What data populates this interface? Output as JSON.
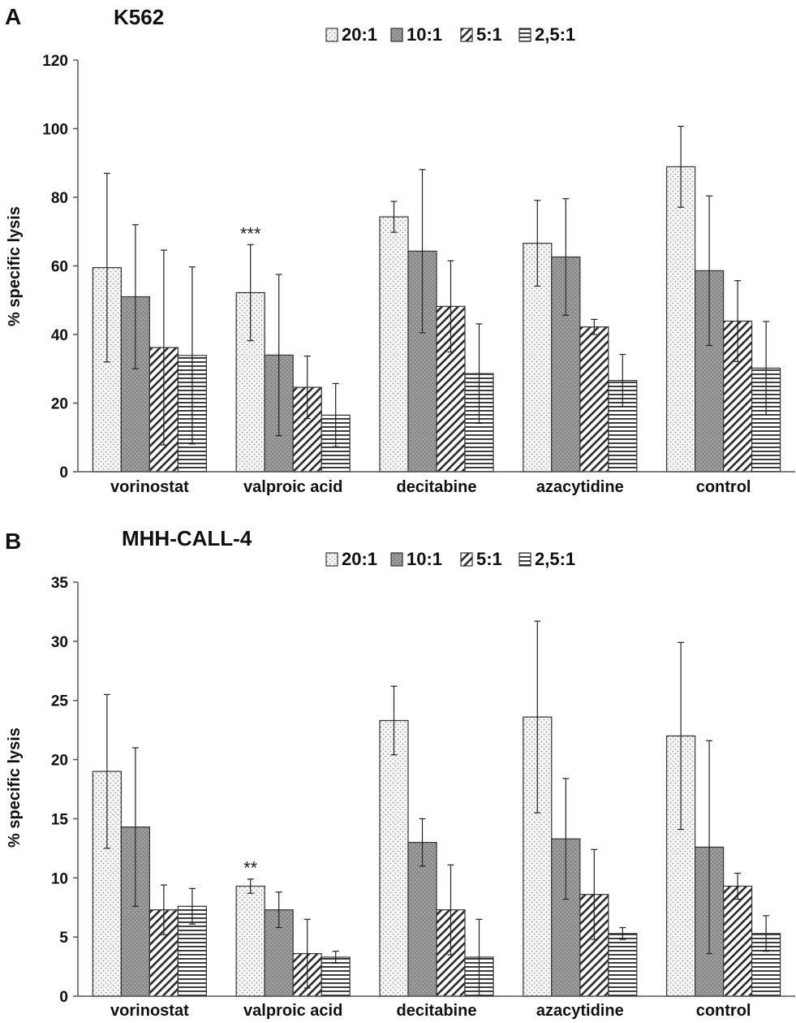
{
  "chart_data": [
    {
      "type": "bar",
      "panel": "A",
      "title": "K562",
      "xlabel": "",
      "ylabel": "% specific lysis",
      "ylim": [
        0,
        120
      ],
      "yticks": [
        0,
        20,
        40,
        60,
        80,
        100,
        120
      ],
      "grid": false,
      "legend_position": "top",
      "categories": [
        "vorinostat",
        "valproic acid",
        "decitabine",
        "azacytidine",
        "control"
      ],
      "series": [
        {
          "name": "20:1",
          "pattern": "dots",
          "values": [
            59.5,
            52.2,
            74.3,
            66.6,
            88.9
          ],
          "errors": [
            27.5,
            14.0,
            4.5,
            12.5,
            11.8
          ]
        },
        {
          "name": "10:1",
          "pattern": "gray-dots",
          "values": [
            51.0,
            34.0,
            64.3,
            62.6,
            58.6
          ],
          "errors": [
            21.0,
            23.5,
            23.8,
            17.0,
            21.8
          ]
        },
        {
          "name": "5:1",
          "pattern": "diagonal",
          "values": [
            36.2,
            24.6,
            48.2,
            42.2,
            43.9
          ],
          "errors": [
            28.4,
            9.1,
            13.3,
            2.2,
            11.8
          ]
        },
        {
          "name": "2,5:1",
          "pattern": "horizontal",
          "values": [
            33.9,
            16.5,
            28.6,
            26.6,
            30.2
          ],
          "errors": [
            25.8,
            9.2,
            14.5,
            7.6,
            13.6
          ]
        }
      ],
      "annotations": [
        {
          "text": "***",
          "category": "valproic acid",
          "series": "20:1"
        }
      ]
    },
    {
      "type": "bar",
      "panel": "B",
      "title": "MHH-CALL-4",
      "xlabel": "",
      "ylabel": "% specific lysis",
      "ylim": [
        0,
        35
      ],
      "yticks": [
        0,
        5,
        10,
        15,
        20,
        25,
        30,
        35
      ],
      "grid": false,
      "legend_position": "top",
      "categories": [
        "vorinostat",
        "valproic acid",
        "decitabine",
        "azacytidine",
        "control"
      ],
      "series": [
        {
          "name": "20:1",
          "pattern": "dots",
          "values": [
            19.0,
            9.3,
            23.3,
            23.6,
            22.0
          ],
          "errors": [
            6.5,
            0.6,
            2.9,
            8.1,
            7.9
          ]
        },
        {
          "name": "10:1",
          "pattern": "gray-dots",
          "values": [
            14.3,
            7.3,
            13.0,
            13.3,
            12.6
          ],
          "errors": [
            6.7,
            1.5,
            2.0,
            5.1,
            9.0
          ]
        },
        {
          "name": "5:1",
          "pattern": "diagonal",
          "values": [
            7.3,
            3.6,
            7.3,
            8.6,
            9.3
          ],
          "errors": [
            2.1,
            2.9,
            3.8,
            3.8,
            1.1
          ]
        },
        {
          "name": "2,5:1",
          "pattern": "horizontal",
          "values": [
            7.6,
            3.3,
            3.3,
            5.3,
            5.3
          ],
          "errors": [
            1.5,
            0.5,
            3.2,
            0.5,
            1.5
          ]
        }
      ],
      "annotations": [
        {
          "text": "**",
          "category": "valproic acid",
          "series": "20:1"
        }
      ]
    }
  ]
}
